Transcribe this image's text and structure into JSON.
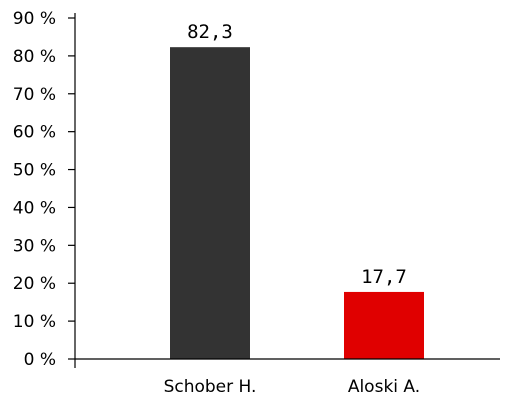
{
  "chart_data": {
    "type": "bar",
    "categories": [
      "Schober H.",
      "Aloski A."
    ],
    "values": [
      82.3,
      17.7
    ],
    "value_labels": [
      "82,3",
      "17,7"
    ],
    "colors": [
      "#333333",
      "#e00000"
    ],
    "y_ticks": [
      0,
      10,
      20,
      30,
      40,
      50,
      60,
      70,
      80,
      90
    ],
    "y_tick_labels": [
      "0 %",
      "10 %",
      "20 %",
      "30 %",
      "40 %",
      "50 %",
      "60 %",
      "70 %",
      "80 %",
      "90 %"
    ],
    "ylim": [
      0,
      90
    ],
    "grid": false,
    "legend": "none"
  }
}
